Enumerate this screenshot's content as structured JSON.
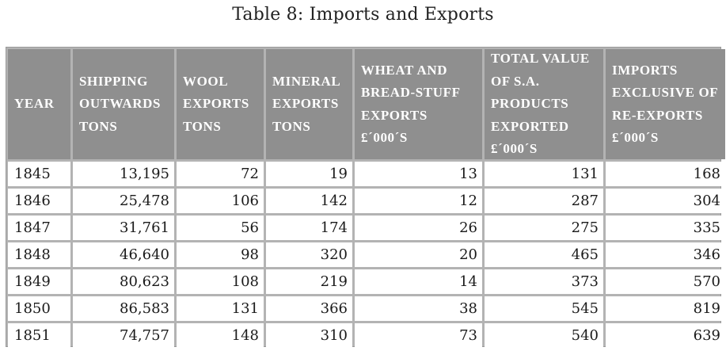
{
  "title": "Table 8: Imports and Exports",
  "headers": [
    "YEAR",
    "SHIPPING\nOUTWARDS\nTONS",
    "WOOL\nEXPORTS\nTONS",
    "MINERAL\nEXPORTS\nTONS",
    "WHEAT AND\nBREAD-STUFF\nEXPORTS\n£´000´S",
    "TOTAL VALUE\nOF S.A.\nPRODUCTS\nEXPORTED\n£´000´S",
    "IMPORTS\nEXCLUSIVE OF\nRE-EXPORTS\n£´000´S"
  ],
  "rows": [
    [
      "1845",
      "13,195",
      "72",
      "19",
      "13",
      "131",
      "168"
    ],
    [
      "1846",
      "25,478",
      "106",
      "142",
      "12",
      "287",
      "304"
    ],
    [
      "1847",
      "31,761",
      "56",
      "174",
      "26",
      "275",
      "335"
    ],
    [
      "1848",
      "46,640",
      "98",
      "320",
      "20",
      "465",
      "346"
    ],
    [
      "1849",
      "80,623",
      "108",
      "219",
      "14",
      "373",
      "570"
    ],
    [
      "1850",
      "86,583",
      "131",
      "366",
      "38",
      "545",
      "819"
    ],
    [
      "1851",
      "74,757",
      "148",
      "310",
      "73",
      "540",
      "639"
    ]
  ]
}
